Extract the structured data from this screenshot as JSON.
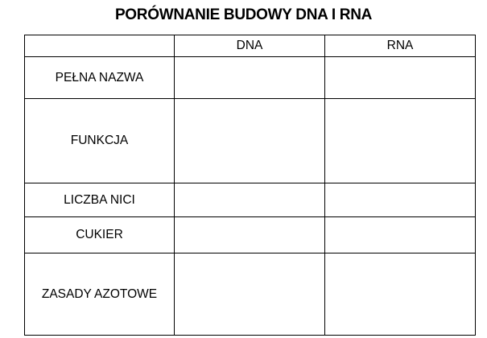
{
  "title": "PORÓWNANIE BUDOWY DNA I RNA",
  "table": {
    "headers": [
      "",
      "DNA",
      "RNA"
    ],
    "rows": [
      "PEŁNA NAZWA",
      "FUNKCJA",
      "LICZBA NICI",
      "CUKIER",
      "ZASADY AZOTOWE"
    ]
  }
}
